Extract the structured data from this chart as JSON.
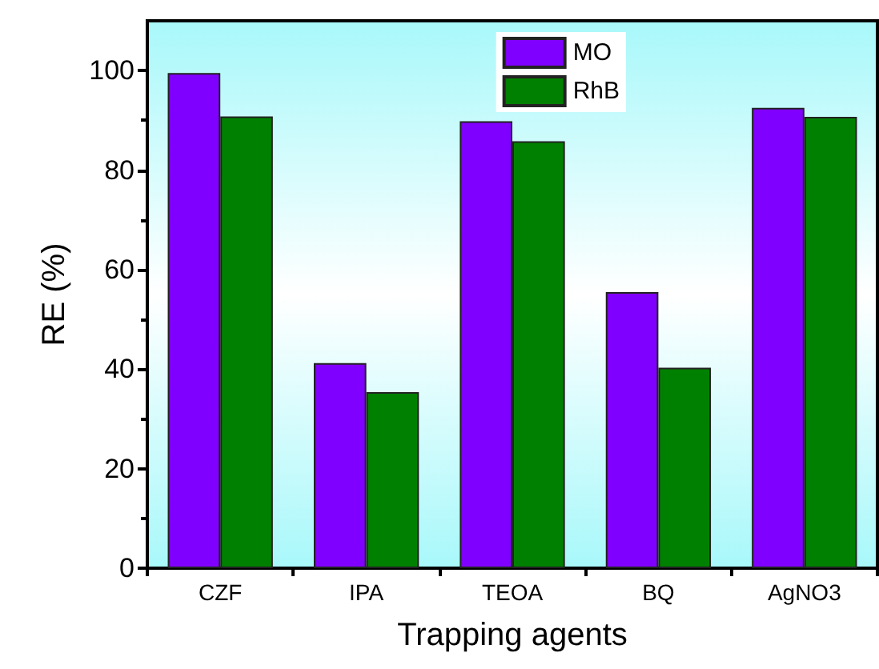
{
  "chart_data": {
    "type": "bar",
    "xlabel": "Trapping agents",
    "ylabel": "RE (%)",
    "categories": [
      "CZF",
      "IPA",
      "TEOA",
      "BQ",
      "AgNO3"
    ],
    "series": [
      {
        "name": "MO",
        "color": "#8000ff",
        "values": [
          99.5,
          41.2,
          89.8,
          55.5,
          92.5
        ]
      },
      {
        "name": "RhB",
        "color": "#008000",
        "values": [
          90.8,
          35.4,
          85.8,
          40.3,
          90.7
        ]
      }
    ],
    "ylim": [
      0,
      110
    ],
    "yticks": [
      0,
      20,
      40,
      60,
      80,
      100
    ],
    "grid": false,
    "legend": "top right"
  }
}
